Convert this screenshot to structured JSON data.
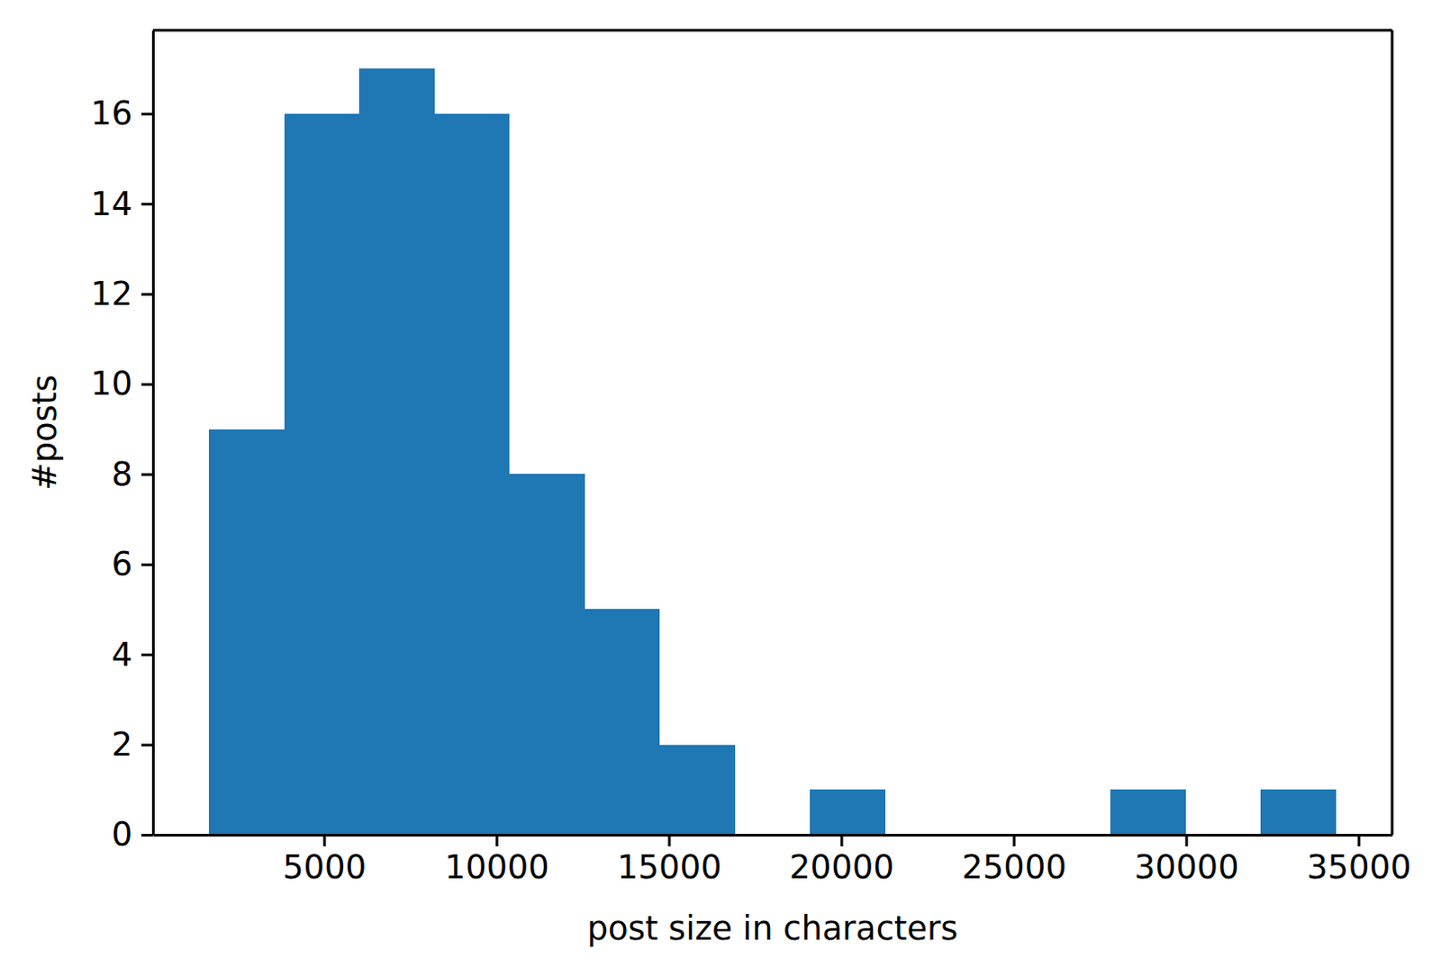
{
  "chart_data": {
    "type": "histogram",
    "x_label": "post size in characters",
    "y_label": "#posts",
    "bins": [
      1669,
      3847,
      6025,
      8203,
      10381,
      12559,
      14737,
      16915,
      19093,
      21271,
      23449,
      25627,
      27805,
      29983,
      32161,
      34339
    ],
    "values": [
      9,
      16,
      17,
      16,
      8,
      5,
      2,
      0,
      1,
      0,
      0,
      0,
      1,
      0,
      1
    ],
    "color": "#1f77b4",
    "xlim": [
      36,
      35972
    ],
    "ylim": [
      0,
      17.85
    ],
    "xticks": [
      5000,
      10000,
      15000,
      20000,
      25000,
      30000,
      35000
    ],
    "yticks": [
      0,
      2,
      4,
      6,
      8,
      10,
      12,
      14,
      16
    ]
  }
}
